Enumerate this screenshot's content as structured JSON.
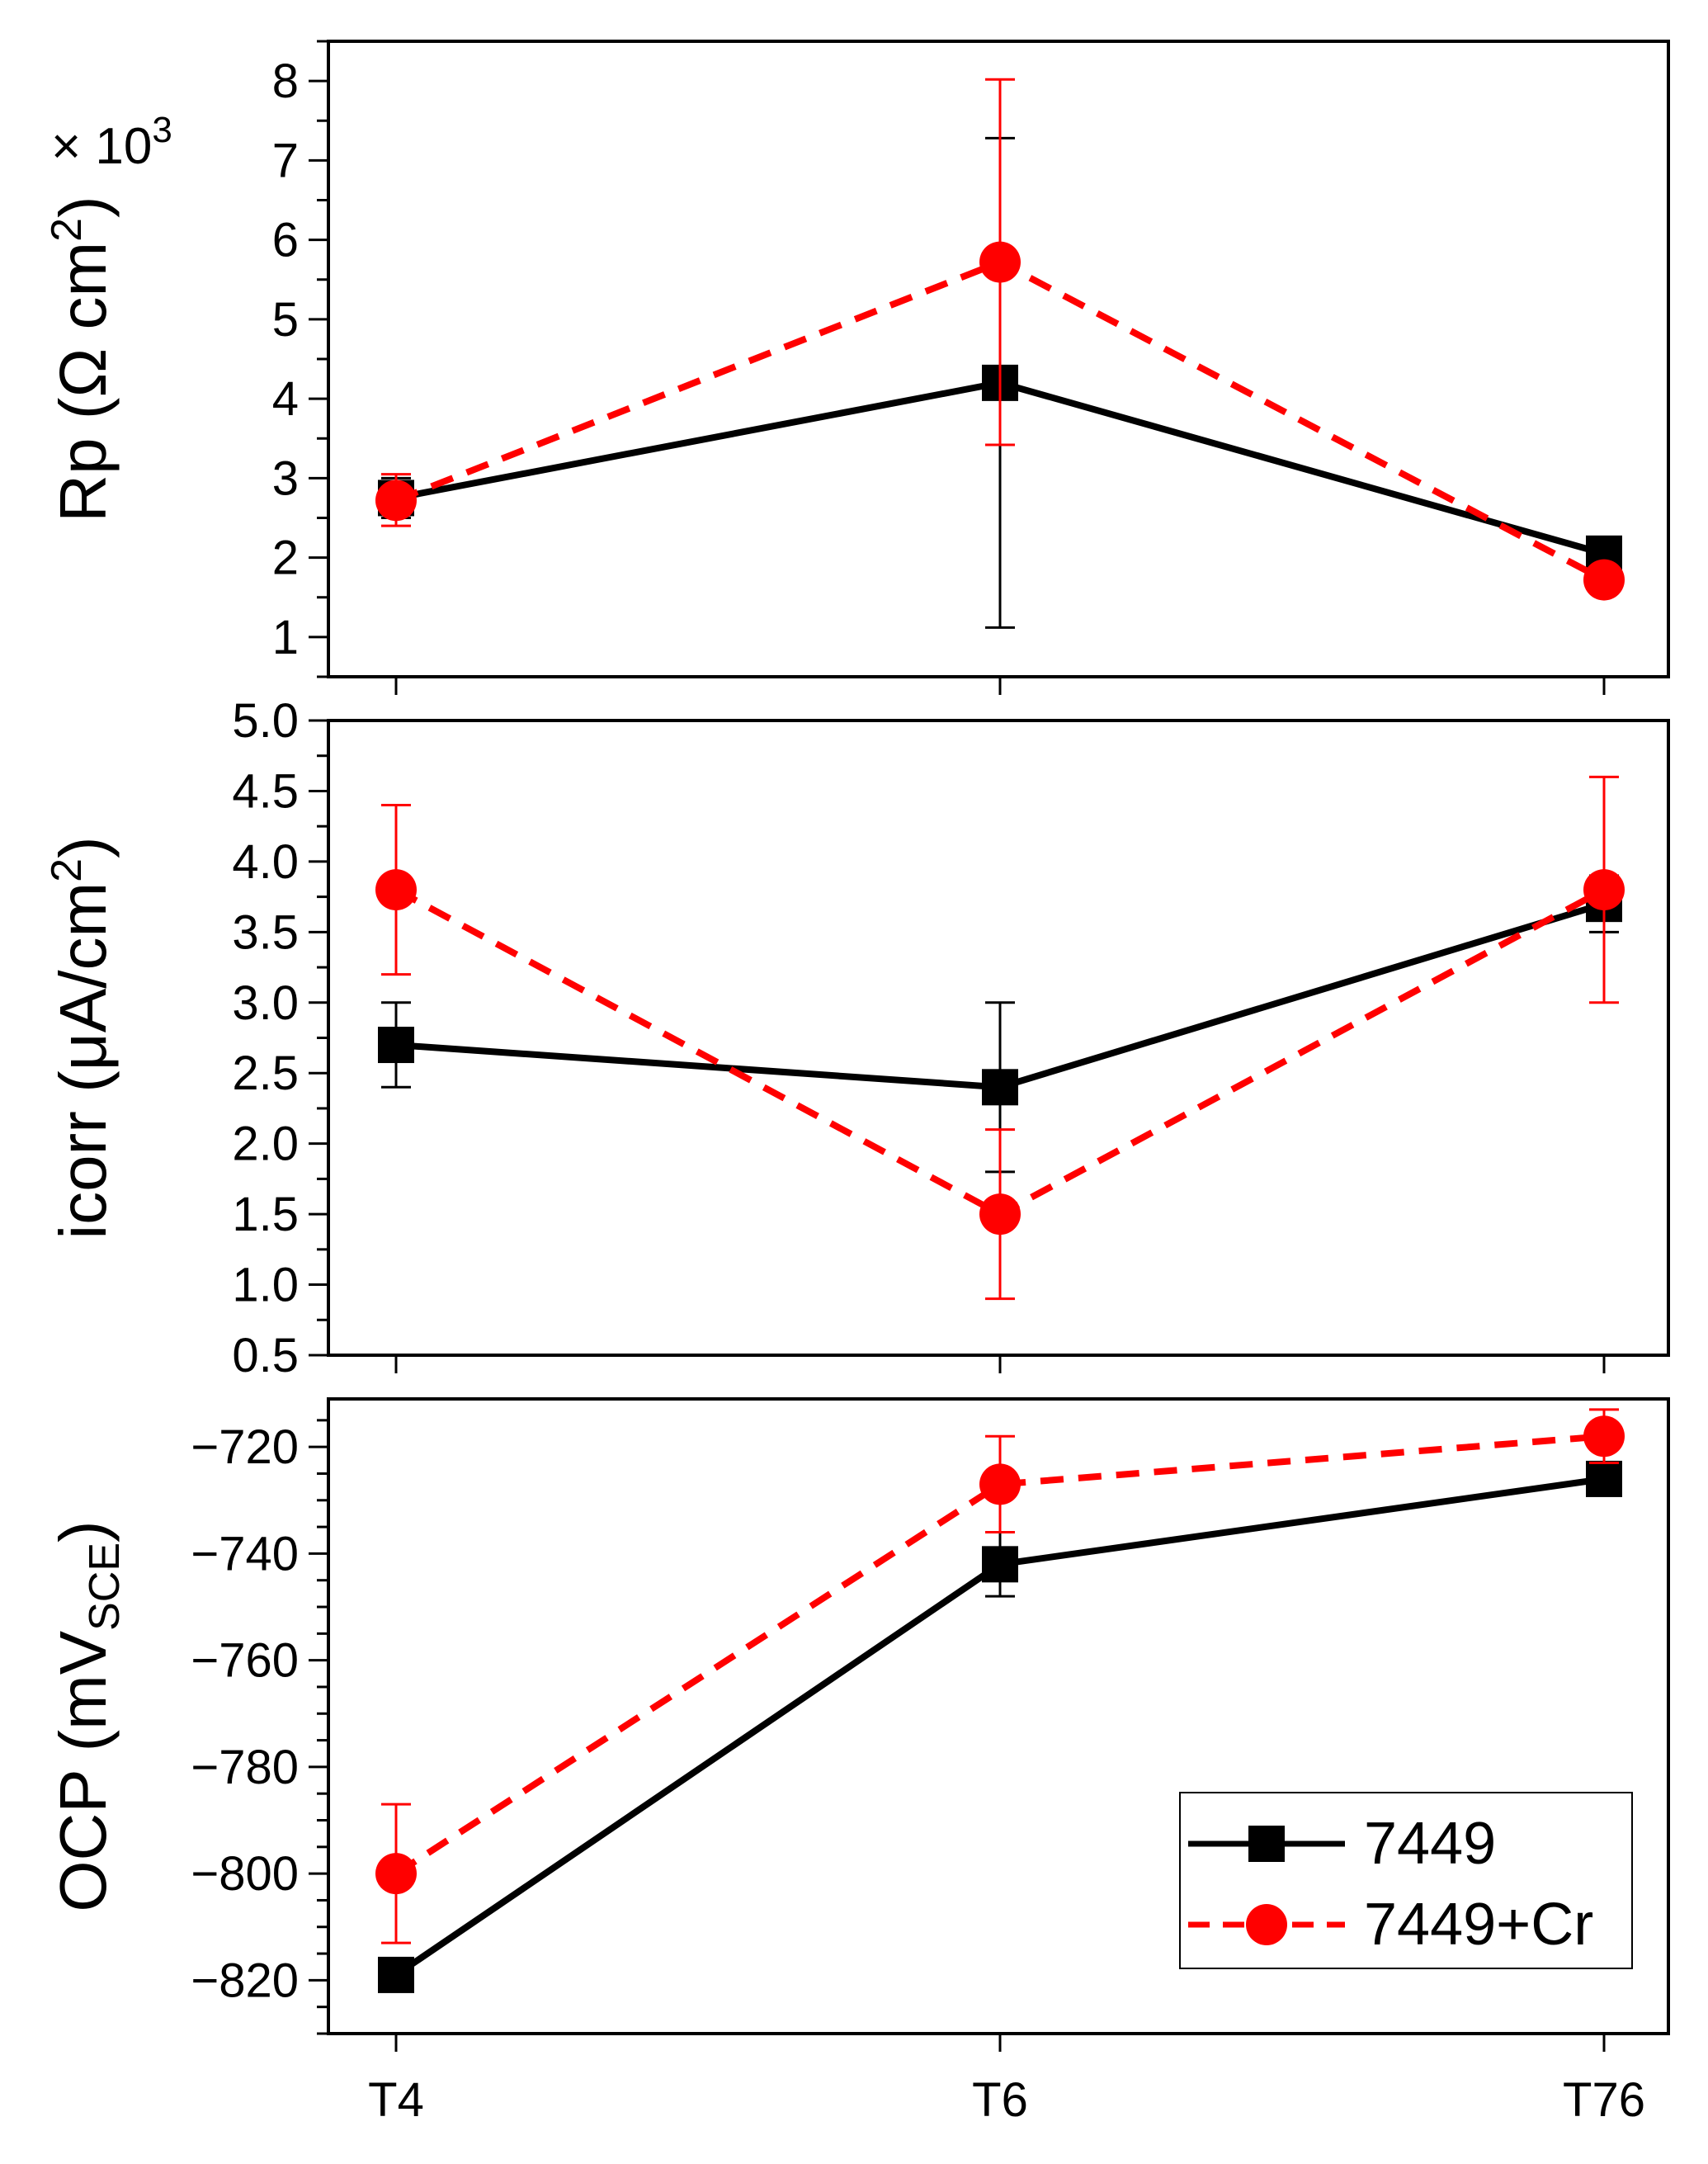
{
  "colors": {
    "series_7449": "#000000",
    "series_7449cr": "#ff0000",
    "axis": "#000000"
  },
  "legend": {
    "items": [
      {
        "label": "7449",
        "marker": "square-icon"
      },
      {
        "label": "7449+Cr",
        "marker": "circle-icon"
      }
    ]
  },
  "chart_data": [
    {
      "type": "line",
      "panel": "top",
      "ylabel_main": "Rp (Ω cm",
      "ylabel_sup": "2",
      "ylabel_close": ")",
      "multiplier_text": "× 10",
      "multiplier_sup": "3",
      "categories": [
        "T4",
        "T6",
        "T76"
      ],
      "ylim": [
        0.5,
        8.5
      ],
      "yticks": [
        1,
        2,
        3,
        4,
        5,
        6,
        7,
        8
      ],
      "ytick_labels": [
        "1",
        "2",
        "3",
        "4",
        "5",
        "6",
        "7",
        "8"
      ],
      "minor_step": 0.5,
      "series": [
        {
          "name": "7449",
          "values": [
            2.75,
            4.2,
            2.05
          ],
          "err_low": [
            2.5,
            1.12,
            2.05
          ],
          "err_high": [
            3.0,
            7.28,
            2.05
          ]
        },
        {
          "name": "7449+Cr",
          "values": [
            2.72,
            5.72,
            1.72
          ],
          "err_low": [
            2.4,
            3.42,
            1.72
          ],
          "err_high": [
            3.05,
            8.02,
            1.72
          ]
        }
      ]
    },
    {
      "type": "line",
      "panel": "middle",
      "ylabel_main": "icorr (μA/cm",
      "ylabel_sup": "2",
      "ylabel_close": ")",
      "categories": [
        "T4",
        "T6",
        "T76"
      ],
      "ylim": [
        0.5,
        5.0
      ],
      "yticks": [
        0.5,
        1.0,
        1.5,
        2.0,
        2.5,
        3.0,
        3.5,
        4.0,
        4.5,
        5.0
      ],
      "ytick_labels": [
        "0.5",
        "1.0",
        "1.5",
        "2.0",
        "2.5",
        "3.0",
        "3.5",
        "4.0",
        "4.5",
        "5.0"
      ],
      "minor_step": 0.25,
      "series": [
        {
          "name": "7449",
          "values": [
            2.7,
            2.4,
            3.7
          ],
          "err_low": [
            2.4,
            1.8,
            3.5
          ],
          "err_high": [
            3.0,
            3.0,
            3.9
          ]
        },
        {
          "name": "7449+Cr",
          "values": [
            3.8,
            1.5,
            3.8
          ],
          "err_low": [
            3.2,
            0.9,
            3.0
          ],
          "err_high": [
            4.4,
            2.1,
            4.6
          ]
        }
      ]
    },
    {
      "type": "line",
      "panel": "bottom",
      "ylabel_main": "OCP (mV",
      "ylabel_sub": "SCE",
      "ylabel_close": ")",
      "categories": [
        "T4",
        "T6",
        "T76"
      ],
      "ylim": [
        -830,
        -711
      ],
      "yticks": [
        -820,
        -800,
        -780,
        -760,
        -740,
        -720
      ],
      "ytick_labels": [
        "−820",
        "−800",
        "−780",
        "−760",
        "−740",
        "−720"
      ],
      "minor_step": 5,
      "series": [
        {
          "name": "7449",
          "values": [
            -819,
            -742,
            -726
          ],
          "err_low": [
            -822,
            -748,
            -728
          ],
          "err_high": [
            -816,
            -736,
            -724
          ]
        },
        {
          "name": "7449+Cr",
          "values": [
            -800,
            -727,
            -718
          ],
          "err_low": [
            -813,
            -736,
            -723
          ],
          "err_high": [
            -787,
            -718,
            -713
          ]
        }
      ]
    }
  ]
}
